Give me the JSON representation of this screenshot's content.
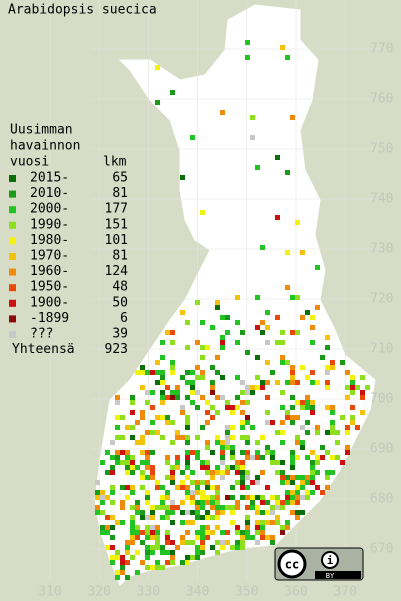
{
  "header": {
    "title": "Arabidopsis suecica"
  },
  "legend": {
    "heading": [
      "Uusimman",
      "havainnon",
      "vuosi"
    ],
    "count_heading": "lkm",
    "rows": [
      {
        "label": "2015-",
        "count": 65,
        "color": "#0a6e0a"
      },
      {
        "label": "2010-",
        "count": 81,
        "color": "#199a19"
      },
      {
        "label": "2000-",
        "count": 177,
        "color": "#22c322"
      },
      {
        "label": "1990-",
        "count": 151,
        "color": "#8ee01e"
      },
      {
        "label": "1980-",
        "count": 101,
        "color": "#f2f20a"
      },
      {
        "label": "1970-",
        "count": 81,
        "color": "#f4c20a"
      },
      {
        "label": "1960-",
        "count": 124,
        "color": "#f08a0a"
      },
      {
        "label": "1950-",
        "count": 48,
        "color": "#e8480a"
      },
      {
        "label": "1900-",
        "count": 50,
        "color": "#cc1010"
      },
      {
        "label": "-1899",
        "count": 6,
        "color": "#8a0a0a"
      },
      {
        "label": "???",
        "count": 39,
        "color": "#c8c8c8"
      }
    ],
    "total": {
      "label": "Yhteensä",
      "count": 923
    }
  },
  "axes": {
    "x": [
      "310",
      "320",
      "330",
      "340",
      "350",
      "360",
      "370"
    ],
    "y": [
      "770",
      "760",
      "750",
      "740",
      "730",
      "720",
      "710",
      "700",
      "690",
      "680",
      "670"
    ]
  },
  "badge": {
    "cc": "cc",
    "i": "i",
    "by": "BY"
  }
}
